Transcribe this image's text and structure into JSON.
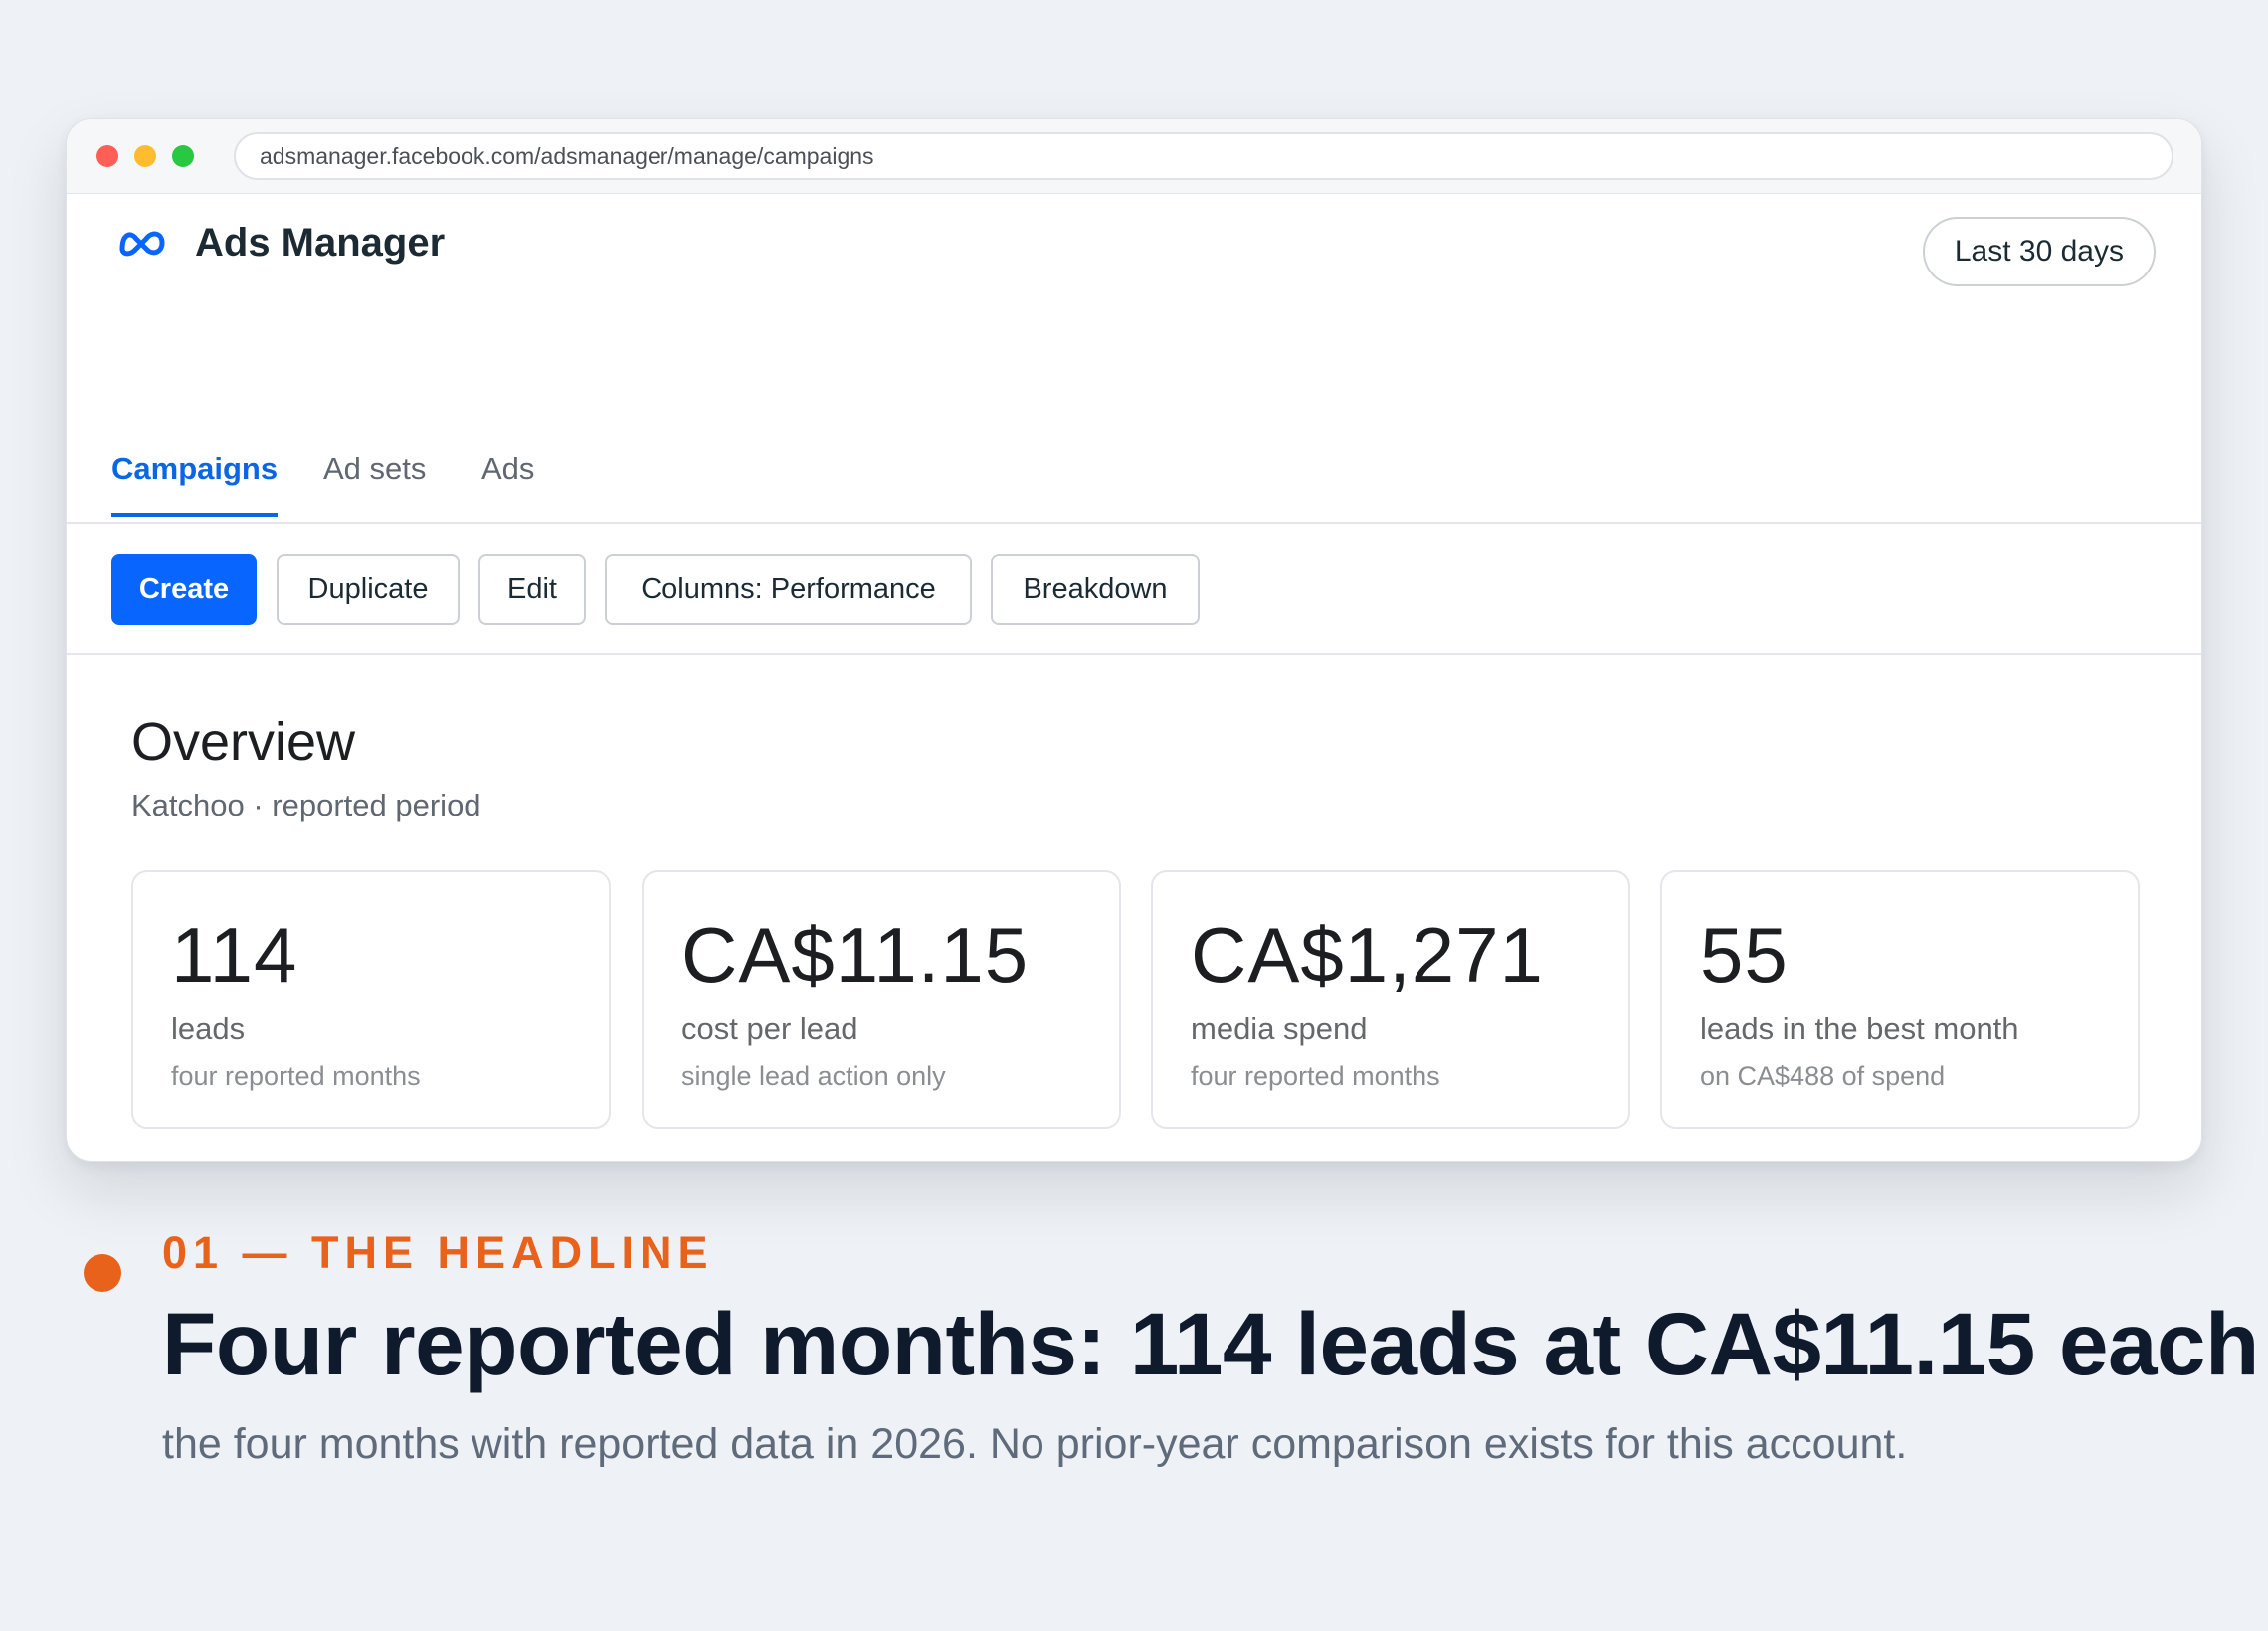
{
  "browser": {
    "url": "adsmanager.facebook.com/adsmanager/manage/campaigns"
  },
  "app": {
    "title": "Ads Manager",
    "date_range": "Last 30 days"
  },
  "tabs": [
    {
      "label": "Campaigns",
      "active": true
    },
    {
      "label": "Ad sets",
      "active": false
    },
    {
      "label": "Ads",
      "active": false
    }
  ],
  "toolbar": {
    "create": "Create",
    "duplicate": "Duplicate",
    "edit": "Edit",
    "columns": "Columns: Performance",
    "breakdown": "Breakdown"
  },
  "overview": {
    "title": "Overview",
    "subtitle": "Katchoo · reported period",
    "cards": [
      {
        "value": "114",
        "label": "leads",
        "note": "four reported months"
      },
      {
        "value": "CA$11.15",
        "label": "cost per lead",
        "note": "single lead action only"
      },
      {
        "value": "CA$1,271",
        "label": "media spend",
        "note": "four reported months"
      },
      {
        "value": "55",
        "label": "leads in the best month",
        "note": "on CA$488 of spend"
      }
    ]
  },
  "caption": {
    "eyebrow": "01 — THE HEADLINE",
    "headline": "Four reported months: 114 leads at CA$11.15 each",
    "subline": "the four months with reported data in 2026. No prior-year comparison exists for this account."
  },
  "colors": {
    "accent_blue": "#0866ff",
    "accent_orange": "#e8621c",
    "background": "#eef1f5"
  },
  "icons": {
    "logo": "meta-logo-icon"
  }
}
